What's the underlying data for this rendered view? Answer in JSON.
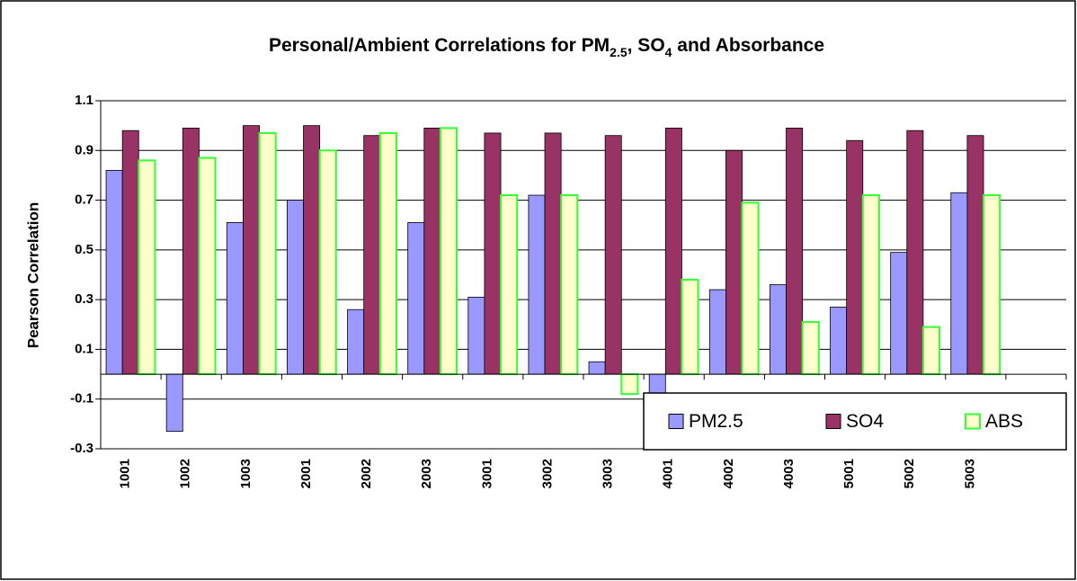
{
  "chart_data": {
    "type": "bar",
    "title": [
      {
        "text": "Personal/Ambient Correlations for PM"
      },
      {
        "text": "2.5",
        "sub": true
      },
      {
        "text": ", SO"
      },
      {
        "text": "4",
        "sub": true
      },
      {
        "text": " and Absorbance"
      }
    ],
    "y_label": "Pearson Correlation",
    "categories": [
      "1001",
      "1002",
      "1003",
      "2001",
      "2002",
      "2003",
      "3001",
      "3002",
      "3003",
      "4001",
      "4002",
      "4003",
      "5001",
      "5002",
      "5003",
      null
    ],
    "series": [
      {
        "name": "PM2.5",
        "color": "#9999ff",
        "values": [
          0.82,
          -0.23,
          0.61,
          0.7,
          0.26,
          0.61,
          0.31,
          0.72,
          0.05,
          -0.11,
          0.34,
          0.36,
          0.27,
          0.49,
          0.73,
          null
        ]
      },
      {
        "name": "SO4",
        "color": "#993366",
        "values": [
          0.98,
          0.99,
          1.0,
          1.0,
          0.96,
          0.99,
          0.97,
          0.97,
          0.96,
          0.99,
          0.9,
          0.99,
          0.94,
          0.98,
          0.96,
          null
        ]
      },
      {
        "name": "ABS",
        "color": "#ffffcc",
        "stroke": "#33ff33",
        "values": [
          0.86,
          0.87,
          0.97,
          0.9,
          0.97,
          0.99,
          0.72,
          0.72,
          -0.08,
          0.38,
          0.69,
          0.21,
          0.72,
          0.19,
          0.72,
          null
        ]
      }
    ],
    "ylim": [
      -0.3,
      1.1
    ],
    "yticks": [
      -0.3,
      -0.1,
      0.1,
      0.3,
      0.5,
      0.7,
      0.9,
      1.1
    ],
    "grid": true,
    "legend": "lower right"
  }
}
